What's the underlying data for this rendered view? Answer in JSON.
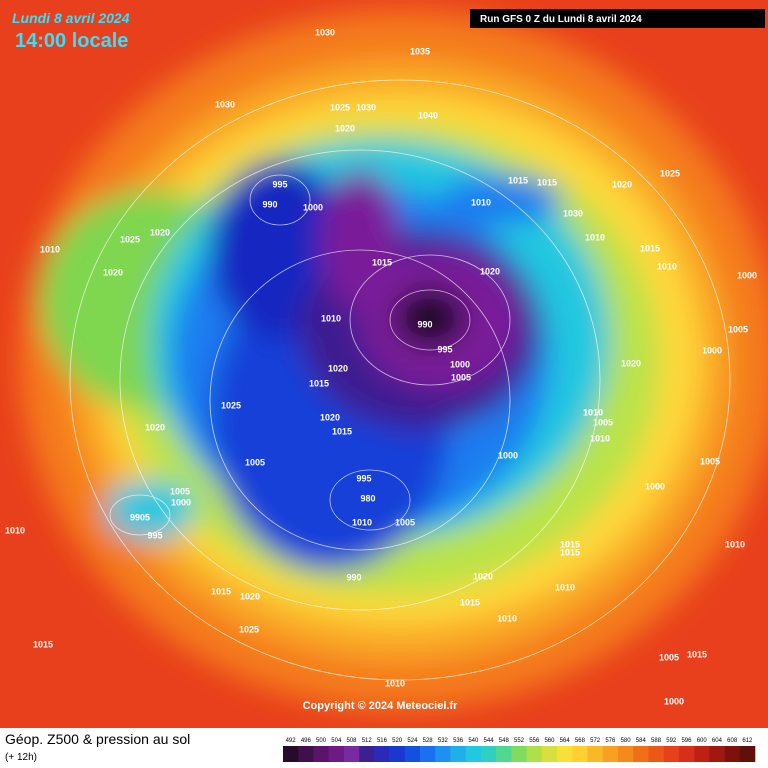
{
  "header": {
    "title": "Lundi 8 avril 2024",
    "subtitle": "14:00 locale",
    "run": "Run GFS 0 Z du Lundi 8 avril 2024"
  },
  "footer": {
    "title": "Géop. Z500 & pression au sol",
    "lead": "(+ 12h)",
    "copyright": "Copyright © 2024 Meteociel.fr"
  },
  "colorbar": {
    "labels": [
      "492",
      "496",
      "500",
      "504",
      "508",
      "512",
      "516",
      "520",
      "524",
      "528",
      "532",
      "536",
      "540",
      "544",
      "548",
      "552",
      "556",
      "560",
      "564",
      "568",
      "572",
      "576",
      "580",
      "584",
      "588",
      "592",
      "596",
      "600",
      "604",
      "608",
      "612"
    ]
  },
  "isobar_labels": [
    "1030",
    "1035",
    "1030",
    "1025",
    "1030",
    "1040",
    "1020",
    "995",
    "990",
    "1000",
    "1015",
    "1015",
    "1010",
    "1020",
    "1025",
    "1030",
    "1010",
    "1020",
    "1020",
    "1010",
    "1025",
    "1020",
    "1015",
    "1010",
    "1000",
    "1005",
    "1015",
    "990",
    "995",
    "1000",
    "1005",
    "1010",
    "1020",
    "1015",
    "1020",
    "1015",
    "1025",
    "1020",
    "1005",
    "995",
    "9905",
    "980",
    "1010",
    "1005",
    "1000",
    "1010",
    "1020",
    "1015",
    "1020",
    "1010",
    "1015",
    "995",
    "990",
    "1015",
    "1020",
    "1025",
    "1015",
    "1010",
    "1005",
    "1000",
    "1010",
    "1005",
    "1010",
    "1000",
    "1000",
    "1005",
    "1015",
    "1010",
    "1015",
    "1005",
    "1010",
    "1010",
    "1000"
  ]
}
